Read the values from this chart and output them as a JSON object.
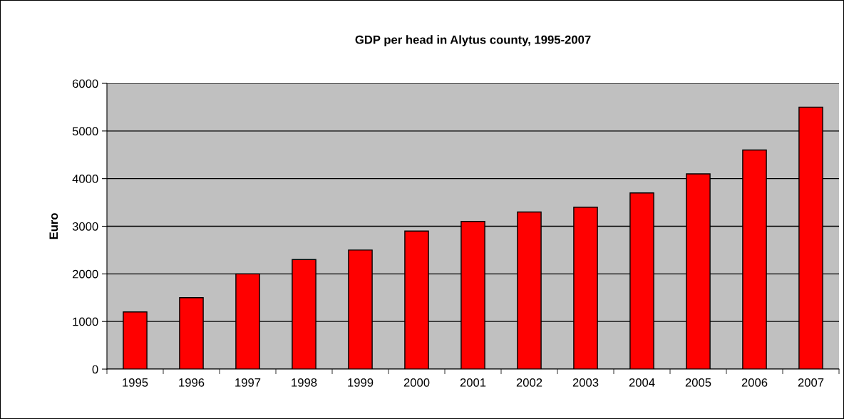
{
  "chart_data": {
    "type": "bar",
    "title": "GDP per head in Alytus county, 1995-2007",
    "ylabel": "Euro",
    "categories": [
      "1995",
      "1996",
      "1997",
      "1998",
      "1999",
      "2000",
      "2001",
      "2002",
      "2003",
      "2004",
      "2005",
      "2006",
      "2007"
    ],
    "values": [
      1200,
      1500,
      2000,
      2300,
      2500,
      2900,
      3100,
      3300,
      3400,
      3700,
      4100,
      4600,
      5500
    ],
    "color": "#ff0000",
    "ylim": [
      0,
      6000
    ],
    "yticks": [
      0,
      1000,
      2000,
      3000,
      4000,
      5000,
      6000
    ],
    "grid": "y",
    "legend": false
  }
}
